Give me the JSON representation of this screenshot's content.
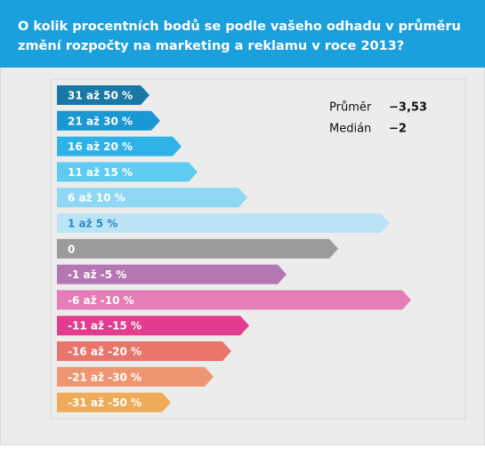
{
  "chart_data": {
    "type": "bar",
    "title": "O kolik procentních bodů se podle vašeho odhadu v průměru změní rozpočty na marketing a reklamu v roce 2013?",
    "categories": [
      "31 až 50 %",
      "21 až 30 %",
      "16 až 20 %",
      "11 až 15 %",
      "6 až 10 %",
      "1 až 5 %",
      "0",
      "-1 až -5 %",
      "-6 až -10 %",
      "-11 až -15 %",
      "-16 až -20 %",
      "-21 až -30 %",
      "-31 až -50 %"
    ],
    "values": [
      5.2,
      5.8,
      7,
      7.9,
      10.7,
      18.7,
      15.8,
      12.9,
      19.9,
      10.8,
      9.8,
      8.8,
      6.4
    ],
    "colors": [
      "#1a78a6",
      "#1b98d4",
      "#2db3e8",
      "#5ecbf1",
      "#8fd8f4",
      "#bbe5f6",
      "#9b9b9b",
      "#b477b1",
      "#e67db6",
      "#e23c8f",
      "#e9756b",
      "#ee9672",
      "#efab57"
    ],
    "xlim": [
      0,
      20
    ],
    "annotations": [
      {
        "label": "Průměr",
        "value": "−3,53"
      },
      {
        "label": "Medián",
        "value": "−2"
      }
    ]
  }
}
